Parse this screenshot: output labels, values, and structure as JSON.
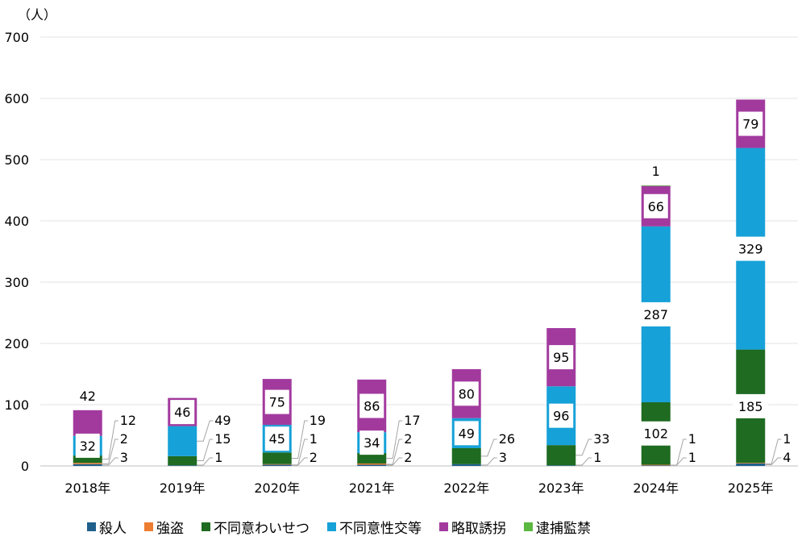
{
  "chart_data": {
    "type": "bar",
    "stacked": true,
    "unit_label": "（人）",
    "categories": [
      "2018年",
      "2019年",
      "2020年",
      "2021年",
      "2022年",
      "2023年",
      "2024年",
      "2025年"
    ],
    "ylim": [
      0,
      700
    ],
    "yticks": [
      0,
      100,
      200,
      300,
      400,
      500,
      600,
      700
    ],
    "grid": true,
    "legend_position": "bottom",
    "series": [
      {
        "name": "殺人",
        "color": "#1f5f8b",
        "values": [
          3,
          1,
          2,
          2,
          3,
          1,
          1,
          4
        ]
      },
      {
        "name": "強盗",
        "color": "#ed7d31",
        "values": [
          2,
          0,
          1,
          2,
          0,
          0,
          1,
          1
        ]
      },
      {
        "name": "不同意わいせつ",
        "color": "#1e6b21",
        "values": [
          12,
          15,
          19,
          17,
          26,
          33,
          102,
          185
        ]
      },
      {
        "name": "不同意性交等",
        "color": "#16a1d8",
        "values": [
          32,
          49,
          45,
          34,
          49,
          96,
          287,
          329
        ]
      },
      {
        "name": "略取誘拐",
        "color": "#a23a9e",
        "values": [
          42,
          46,
          75,
          86,
          80,
          95,
          66,
          79
        ]
      },
      {
        "name": "逮捕監禁",
        "color": "#5bb840",
        "values": [
          0,
          0,
          0,
          0,
          0,
          0,
          1,
          0
        ]
      }
    ],
    "data_labels": [
      [
        {
          "text": "3",
          "series": 0,
          "pos": "leader"
        },
        {
          "text": "2",
          "series": 1,
          "pos": "leader"
        },
        {
          "text": "12",
          "series": 2,
          "pos": "leader"
        },
        {
          "text": "32",
          "series": 3,
          "pos": "inside"
        },
        {
          "text": "42",
          "series": 4,
          "pos": "above"
        }
      ],
      [
        {
          "text": "1",
          "series": 0,
          "pos": "leader"
        },
        {
          "text": "15",
          "series": 2,
          "pos": "leader"
        },
        {
          "text": "49",
          "series": 3,
          "pos": "leader"
        },
        {
          "text": "46",
          "series": 4,
          "pos": "inside"
        }
      ],
      [
        {
          "text": "2",
          "series": 0,
          "pos": "leader"
        },
        {
          "text": "1",
          "series": 1,
          "pos": "leader"
        },
        {
          "text": "19",
          "series": 2,
          "pos": "leader"
        },
        {
          "text": "45",
          "series": 3,
          "pos": "inside"
        },
        {
          "text": "75",
          "series": 4,
          "pos": "inside"
        }
      ],
      [
        {
          "text": "2",
          "series": 0,
          "pos": "leader"
        },
        {
          "text": "2",
          "series": 1,
          "pos": "leader"
        },
        {
          "text": "17",
          "series": 2,
          "pos": "leader"
        },
        {
          "text": "34",
          "series": 3,
          "pos": "inside"
        },
        {
          "text": "86",
          "series": 4,
          "pos": "inside"
        }
      ],
      [
        {
          "text": "3",
          "series": 0,
          "pos": "leader"
        },
        {
          "text": "26",
          "series": 2,
          "pos": "leader"
        },
        {
          "text": "49",
          "series": 3,
          "pos": "inside"
        },
        {
          "text": "80",
          "series": 4,
          "pos": "inside"
        }
      ],
      [
        {
          "text": "1",
          "series": 0,
          "pos": "leader"
        },
        {
          "text": "33",
          "series": 2,
          "pos": "leader"
        },
        {
          "text": "96",
          "series": 3,
          "pos": "inside"
        },
        {
          "text": "95",
          "series": 4,
          "pos": "inside"
        }
      ],
      [
        {
          "text": "1",
          "series": 0,
          "pos": "leader"
        },
        {
          "text": "1",
          "series": 1,
          "pos": "leader"
        },
        {
          "text": "102",
          "series": 2,
          "pos": "inside"
        },
        {
          "text": "287",
          "series": 3,
          "pos": "inside"
        },
        {
          "text": "66",
          "series": 4,
          "pos": "inside"
        },
        {
          "text": "1",
          "series": 5,
          "pos": "above"
        }
      ],
      [
        {
          "text": "4",
          "series": 0,
          "pos": "leader"
        },
        {
          "text": "1",
          "series": 1,
          "pos": "leader"
        },
        {
          "text": "185",
          "series": 2,
          "pos": "inside"
        },
        {
          "text": "329",
          "series": 3,
          "pos": "inside"
        },
        {
          "text": "79",
          "series": 4,
          "pos": "inside"
        }
      ]
    ]
  }
}
